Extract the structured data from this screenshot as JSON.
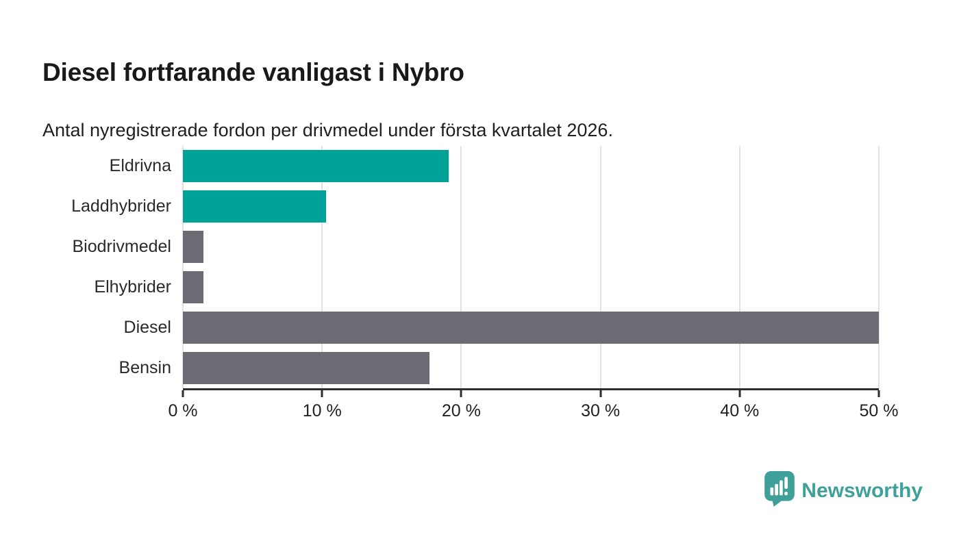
{
  "chart_data": {
    "type": "bar",
    "orientation": "horizontal",
    "title": "Diesel fortfarande vanligast i Nybro",
    "subtitle": "Antal nyregistrerade fordon per drivmedel under första kvartalet 2026.",
    "categories": [
      "Eldrivna",
      "Laddhybrider",
      "Biodrivmedel",
      "Elhybrider",
      "Diesel",
      "Bensin"
    ],
    "values": [
      19.1,
      10.3,
      1.5,
      1.5,
      50,
      17.7
    ],
    "unit": "%",
    "xlim": [
      0,
      50
    ],
    "x_tick_values": [
      0,
      10,
      20,
      30,
      40,
      50
    ],
    "x_tick_labels": [
      "0 %",
      "10 %",
      "20 %",
      "30 %",
      "40 %",
      "50 %"
    ],
    "bar_colors": [
      "#00a297",
      "#00a297",
      "#6c6b73",
      "#6c6b73",
      "#6c6b73",
      "#6c6b73"
    ],
    "grid": true,
    "legend": false
  },
  "colors": {
    "teal_bar": "#00a297",
    "gray_bar": "#6c6b73",
    "gridline": "#e2e2e2",
    "axis": "#2e2e2e",
    "brand": "#3fa09a"
  },
  "branding": {
    "name": "Newsworthy",
    "icon": "newsworthy-pin-bar-chart-icon"
  }
}
